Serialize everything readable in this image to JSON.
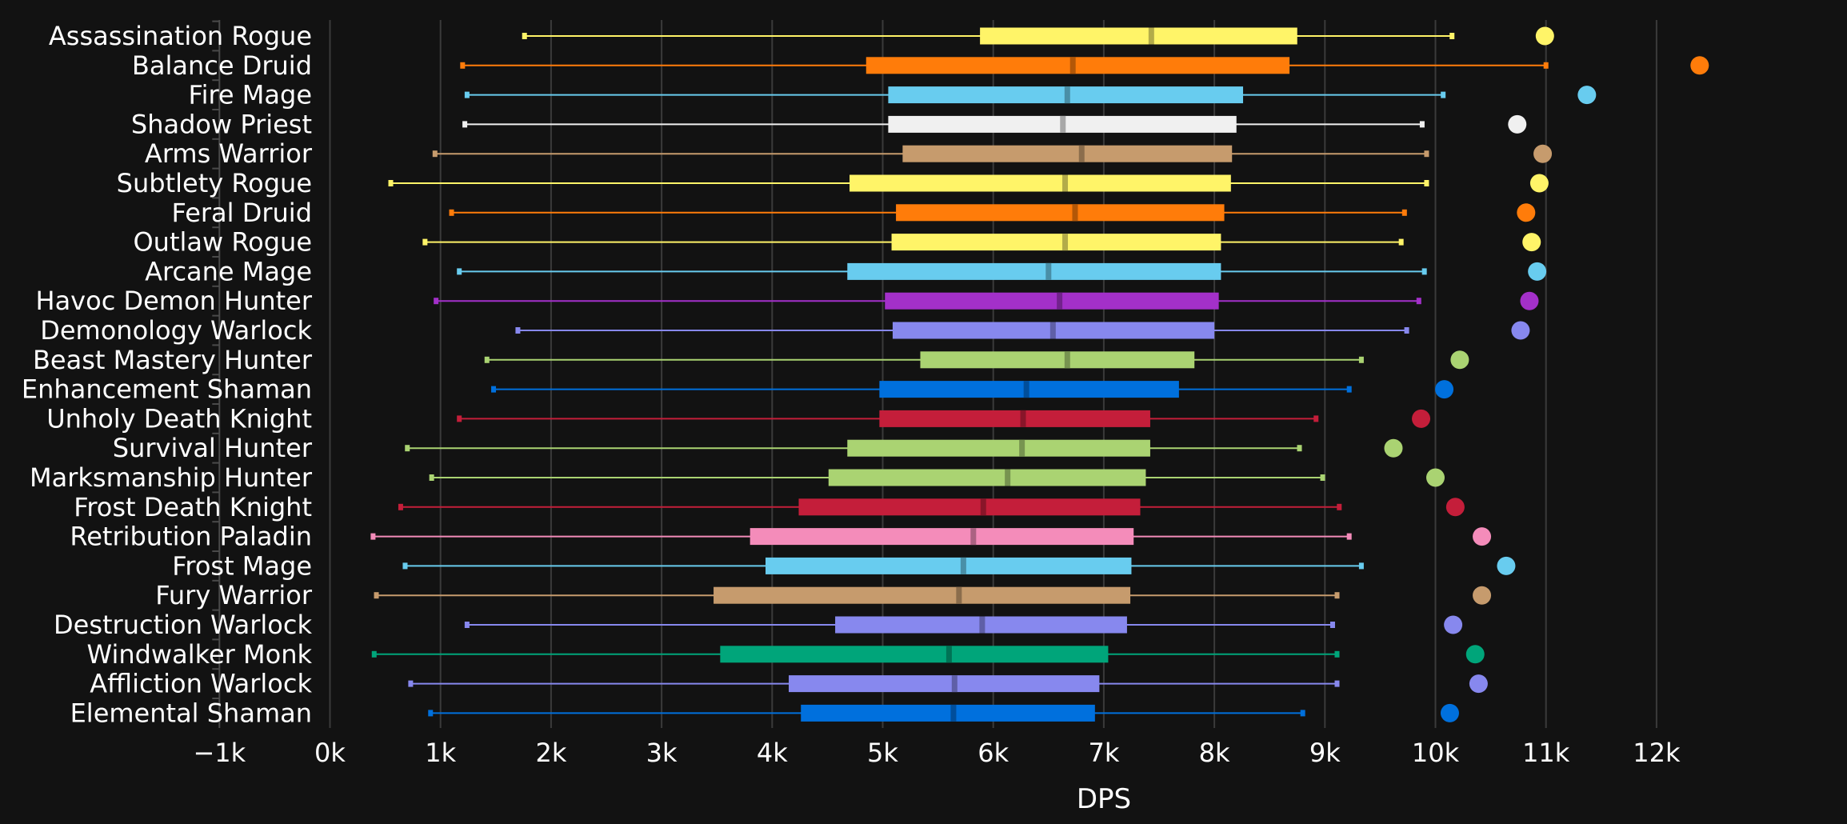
{
  "chart_data": {
    "type": "box",
    "title": "",
    "xlabel": "DPS",
    "ylabel": "",
    "xlim": [
      -1000,
      12500
    ],
    "x_ticks": [
      -1000,
      0,
      1000,
      2000,
      3000,
      4000,
      5000,
      6000,
      7000,
      8000,
      9000,
      10000,
      11000,
      12000
    ],
    "x_tick_labels": [
      "−1k",
      "0k",
      "1k",
      "2k",
      "3k",
      "4k",
      "5k",
      "6k",
      "7k",
      "8k",
      "9k",
      "10k",
      "11k",
      "12k"
    ],
    "grid": "vertical",
    "legend": "none",
    "series": [
      {
        "category": "Assassination Rogue",
        "min": 1760,
        "q1": 5880,
        "median": 7430,
        "q3": 8750,
        "max": 10150,
        "outlier": 10990,
        "color": "#fff468"
      },
      {
        "category": "Balance Druid",
        "min": 1200,
        "q1": 4850,
        "median": 6720,
        "q3": 8680,
        "max": 11000,
        "outlier": 12390,
        "color": "#ff7c0a"
      },
      {
        "category": "Fire Mage",
        "min": 1240,
        "q1": 5050,
        "median": 6670,
        "q3": 8260,
        "max": 10070,
        "outlier": 11370,
        "color": "#68ccef"
      },
      {
        "category": "Shadow Priest",
        "min": 1220,
        "q1": 5050,
        "median": 6630,
        "q3": 8200,
        "max": 9880,
        "outlier": 10740,
        "color": "#f0f0f0"
      },
      {
        "category": "Arms Warrior",
        "min": 950,
        "q1": 5180,
        "median": 6800,
        "q3": 8160,
        "max": 9920,
        "outlier": 10970,
        "color": "#c69b6d"
      },
      {
        "category": "Subtlety Rogue",
        "min": 550,
        "q1": 4700,
        "median": 6650,
        "q3": 8150,
        "max": 9920,
        "outlier": 10940,
        "color": "#fff468"
      },
      {
        "category": "Feral Druid",
        "min": 1100,
        "q1": 5120,
        "median": 6740,
        "q3": 8090,
        "max": 9720,
        "outlier": 10820,
        "color": "#ff7c0a"
      },
      {
        "category": "Outlaw Rogue",
        "min": 860,
        "q1": 5080,
        "median": 6650,
        "q3": 8060,
        "max": 9690,
        "outlier": 10870,
        "color": "#fff468"
      },
      {
        "category": "Arcane Mage",
        "min": 1170,
        "q1": 4680,
        "median": 6500,
        "q3": 8060,
        "max": 9900,
        "outlier": 10920,
        "color": "#68ccef"
      },
      {
        "category": "Havoc Demon Hunter",
        "min": 960,
        "q1": 5020,
        "median": 6600,
        "q3": 8040,
        "max": 9850,
        "outlier": 10850,
        "color": "#a330c9"
      },
      {
        "category": "Demonology Warlock",
        "min": 1700,
        "q1": 5090,
        "median": 6540,
        "q3": 8000,
        "max": 9740,
        "outlier": 10770,
        "color": "#8788ee"
      },
      {
        "category": "Beast Mastery Hunter",
        "min": 1420,
        "q1": 5340,
        "median": 6670,
        "q3": 7820,
        "max": 9330,
        "outlier": 10220,
        "color": "#aad372"
      },
      {
        "category": "Enhancement Shaman",
        "min": 1480,
        "q1": 4970,
        "median": 6300,
        "q3": 7680,
        "max": 9220,
        "outlier": 10080,
        "color": "#0070dd"
      },
      {
        "category": "Unholy Death Knight",
        "min": 1170,
        "q1": 4970,
        "median": 6270,
        "q3": 7420,
        "max": 8920,
        "outlier": 9870,
        "color": "#c41e3a"
      },
      {
        "category": "Survival Hunter",
        "min": 700,
        "q1": 4680,
        "median": 6260,
        "q3": 7420,
        "max": 8770,
        "outlier": 9620,
        "color": "#aad372"
      },
      {
        "category": "Marksmanship Hunter",
        "min": 920,
        "q1": 4510,
        "median": 6130,
        "q3": 7380,
        "max": 8980,
        "outlier": 10000,
        "color": "#aad372"
      },
      {
        "category": "Frost Death Knight",
        "min": 640,
        "q1": 4240,
        "median": 5910,
        "q3": 7330,
        "max": 9130,
        "outlier": 10180,
        "color": "#c41e3a"
      },
      {
        "category": "Retribution Paladin",
        "min": 390,
        "q1": 3800,
        "median": 5820,
        "q3": 7270,
        "max": 9220,
        "outlier": 10420,
        "color": "#f48cba"
      },
      {
        "category": "Frost Mage",
        "min": 680,
        "q1": 3940,
        "median": 5730,
        "q3": 7250,
        "max": 9330,
        "outlier": 10640,
        "color": "#68ccef"
      },
      {
        "category": "Fury Warrior",
        "min": 420,
        "q1": 3470,
        "median": 5690,
        "q3": 7240,
        "max": 9110,
        "outlier": 10420,
        "color": "#c69b6d"
      },
      {
        "category": "Destruction Warlock",
        "min": 1240,
        "q1": 4570,
        "median": 5900,
        "q3": 7210,
        "max": 9070,
        "outlier": 10160,
        "color": "#8788ee"
      },
      {
        "category": "Windwalker Monk",
        "min": 400,
        "q1": 3530,
        "median": 5600,
        "q3": 7040,
        "max": 9110,
        "outlier": 10360,
        "color": "#00a57a"
      },
      {
        "category": "Affliction Warlock",
        "min": 730,
        "q1": 4150,
        "median": 5650,
        "q3": 6960,
        "max": 9110,
        "outlier": 10390,
        "color": "#8788ee"
      },
      {
        "category": "Elemental Shaman",
        "min": 910,
        "q1": 4260,
        "median": 5640,
        "q3": 6920,
        "max": 8800,
        "outlier": 10130,
        "color": "#0070dd"
      }
    ]
  }
}
